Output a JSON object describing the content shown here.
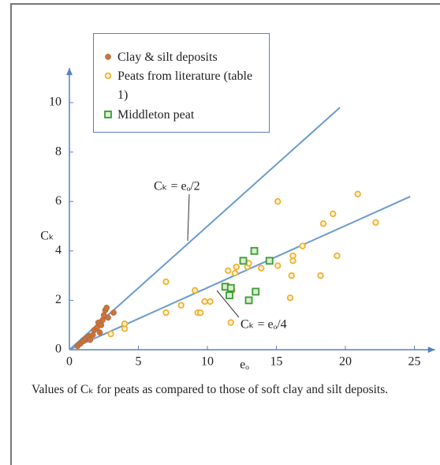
{
  "chart_data": {
    "type": "scatter",
    "xlabel": "eₒ",
    "ylabel": "Cₖ",
    "caption": "Values of Cₖ for peats as compared to those of soft clay and silt deposits.",
    "xlim": [
      0,
      26.5
    ],
    "ylim": [
      0,
      11.4
    ],
    "xticks": [
      0,
      5,
      10,
      15,
      20,
      25
    ],
    "yticks": [
      0,
      2,
      4,
      6,
      8,
      10
    ],
    "axis_color": "#5b7fc0",
    "series": [
      {
        "name": "Clay & silt deposits",
        "color": "#c8743c",
        "marker": "filled-circle",
        "x": [
          0.6,
          0.8,
          1.0,
          1.2,
          1.4,
          1.5,
          1.7,
          1.8,
          2.0,
          2.1,
          2.2,
          2.3,
          2.4,
          2.5,
          2.6,
          2.7,
          2.8,
          3.2
        ],
        "values": [
          0.15,
          0.25,
          0.35,
          0.45,
          0.55,
          0.4,
          0.6,
          0.8,
          0.9,
          1.1,
          0.7,
          1.0,
          1.2,
          1.4,
          1.6,
          1.7,
          1.3,
          1.5
        ]
      },
      {
        "name": "Peats from literature (table 1)",
        "color": "#f0b030",
        "marker": "hollow-circle",
        "x": [
          3.0,
          4.0,
          4.0,
          7.0,
          7.0,
          8.1,
          9.1,
          9.3,
          9.5,
          9.8,
          10.2,
          11.5,
          11.8,
          12.0,
          12.1,
          11.7,
          12.9,
          13.0,
          13.9,
          15.1,
          15.1,
          16.0,
          16.1,
          16.2,
          16.2,
          16.9,
          18.2,
          18.4,
          19.1,
          19.4,
          20.9,
          22.2
        ],
        "values": [
          0.64,
          0.85,
          1.05,
          2.75,
          1.5,
          1.8,
          2.4,
          1.5,
          1.5,
          1.95,
          1.95,
          3.2,
          2.4,
          3.1,
          3.35,
          1.1,
          3.35,
          3.5,
          3.3,
          6.0,
          3.4,
          2.1,
          3.0,
          3.6,
          3.8,
          4.2,
          3.0,
          5.1,
          5.5,
          3.8,
          6.3,
          5.15
        ]
      },
      {
        "name": "Middleton peat",
        "color": "#3a9a3a",
        "marker": "hollow-square",
        "x": [
          12.6,
          13.4,
          14.5,
          11.3,
          11.7,
          11.6,
          13.0,
          13.5
        ],
        "values": [
          3.6,
          4.0,
          3.6,
          2.55,
          2.5,
          2.2,
          2.0,
          2.35
        ]
      }
    ],
    "lines": [
      {
        "label": "Cₖ = eₒ/2",
        "color": "#6a9ad0",
        "x": [
          0,
          19.6
        ],
        "values": [
          0,
          9.8
        ]
      },
      {
        "label": "Cₖ = eₒ/4",
        "color": "#6a9ad0",
        "x": [
          0,
          24.7
        ],
        "values": [
          0,
          6.2
        ]
      }
    ]
  }
}
